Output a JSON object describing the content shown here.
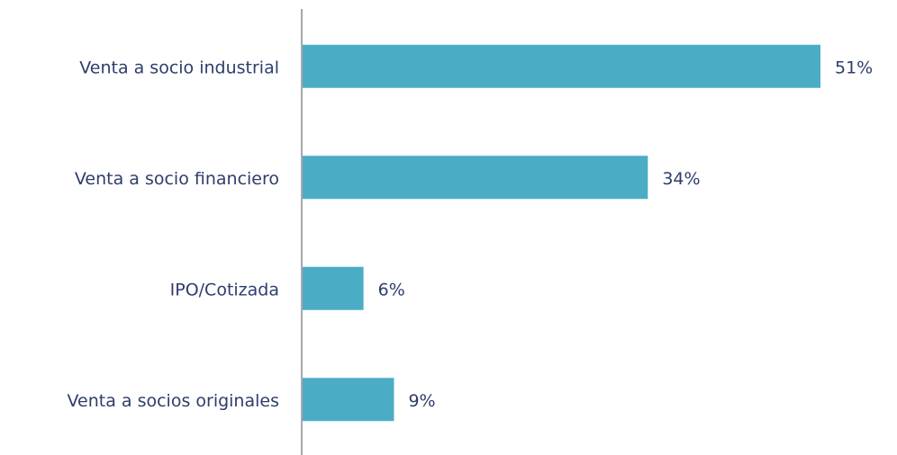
{
  "chart_data": {
    "type": "bar",
    "orientation": "horizontal",
    "categories": [
      "Venta a socio industrial",
      "Venta a socio financiero",
      "IPO/Cotizada",
      "Venta a socios originales"
    ],
    "values": [
      51,
      34,
      6,
      9
    ],
    "value_labels": [
      "51%",
      "34%",
      "6%",
      "9%"
    ],
    "color": "#4bacc6"
  }
}
